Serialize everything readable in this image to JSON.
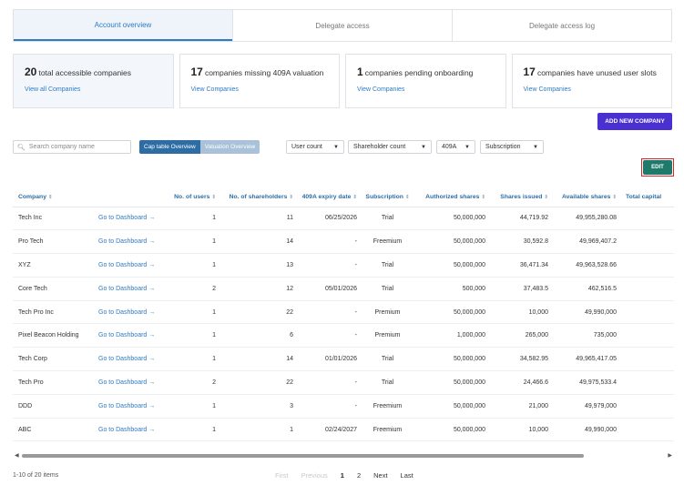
{
  "tabs": [
    {
      "label": "Account overview",
      "active": true
    },
    {
      "label": "Delegate access",
      "active": false
    },
    {
      "label": "Delegate access log",
      "active": false
    }
  ],
  "cards": [
    {
      "count": "20",
      "text": "total accessible companies",
      "link": "View all Companies"
    },
    {
      "count": "17",
      "text": "companies missing 409A valuation",
      "link": "View Companies"
    },
    {
      "count": "1",
      "text": "companies pending onboarding",
      "link": "View Companies"
    },
    {
      "count": "17",
      "text": "companies have unused user slots",
      "link": "View Companies"
    }
  ],
  "add_button": "ADD NEW COMPANY",
  "search": {
    "placeholder": "Search company name",
    "icon": "search-icon"
  },
  "view_toggle": {
    "cap_table": "Cap table Overview",
    "valuation": "Valuation Overview",
    "active": "Cap table Overview"
  },
  "dropdowns": [
    "User count",
    "Shareholder count",
    "409A",
    "Subscription"
  ],
  "edit_button": "EDIT",
  "table": {
    "columns": [
      "Company",
      "",
      "No. of users",
      "No. of shareholders",
      "409A expiry date",
      "Subscription",
      "Authorized shares",
      "Shares issued",
      "Available shares",
      "Total capital"
    ],
    "link_label": "Go to Dashboard",
    "rows": [
      {
        "company": "Tech Inc",
        "users": "1",
        "shareholders": "11",
        "expiry": "06/25/2026",
        "subscription": "Trial",
        "authorized": "50,000,000",
        "issued": "44,719.92",
        "available": "49,955,280.08"
      },
      {
        "company": "Pro Tech",
        "users": "1",
        "shareholders": "14",
        "expiry": "-",
        "subscription": "Freemium",
        "authorized": "50,000,000",
        "issued": "30,592.8",
        "available": "49,969,407.2"
      },
      {
        "company": "XYZ",
        "users": "1",
        "shareholders": "13",
        "expiry": "-",
        "subscription": "Trial",
        "authorized": "50,000,000",
        "issued": "36,471.34",
        "available": "49,963,528.66"
      },
      {
        "company": "Core Tech",
        "users": "2",
        "shareholders": "12",
        "expiry": "05/01/2026",
        "subscription": "Trial",
        "authorized": "500,000",
        "issued": "37,483.5",
        "available": "462,516.5"
      },
      {
        "company": "Tech Pro Inc",
        "users": "1",
        "shareholders": "22",
        "expiry": "-",
        "subscription": "Premium",
        "authorized": "50,000,000",
        "issued": "10,000",
        "available": "49,990,000"
      },
      {
        "company": "Pixel Beacon Holding",
        "users": "1",
        "shareholders": "6",
        "expiry": "-",
        "subscription": "Premium",
        "authorized": "1,000,000",
        "issued": "265,000",
        "available": "735,000"
      },
      {
        "company": "Tech Corp",
        "users": "1",
        "shareholders": "14",
        "expiry": "01/01/2026",
        "subscription": "Trial",
        "authorized": "50,000,000",
        "issued": "34,582.95",
        "available": "49,965,417.05"
      },
      {
        "company": "Tech Pro",
        "users": "2",
        "shareholders": "22",
        "expiry": "-",
        "subscription": "Trial",
        "authorized": "50,000,000",
        "issued": "24,466.6",
        "available": "49,975,533.4"
      },
      {
        "company": "DDD",
        "users": "1",
        "shareholders": "3",
        "expiry": "-",
        "subscription": "Freemium",
        "authorized": "50,000,000",
        "issued": "21,000",
        "available": "49,979,000"
      },
      {
        "company": "ABC",
        "users": "1",
        "shareholders": "1",
        "expiry": "02/24/2027",
        "subscription": "Freemium",
        "authorized": "50,000,000",
        "issued": "10,000",
        "available": "49,990,000"
      }
    ]
  },
  "pagination": {
    "summary": "1-10 of 20 items",
    "first": "First",
    "previous": "Previous",
    "pages": [
      "1",
      "2"
    ],
    "current": "1",
    "next": "Next",
    "last": "Last"
  },
  "colors": {
    "accent": "#2e7bc4",
    "add_button": "#4a2fd1",
    "edit_button": "#1e7a6a",
    "highlight_border": "#d9262b"
  }
}
